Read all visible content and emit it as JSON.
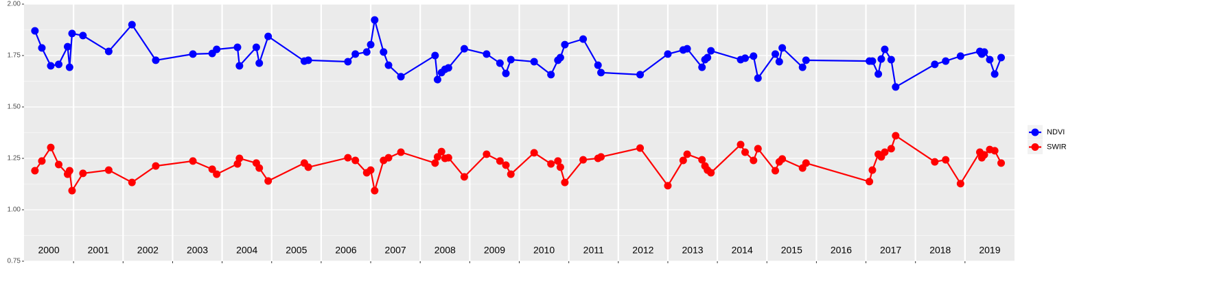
{
  "chart_data": {
    "type": "line",
    "x": [
      2000.22,
      2000.36,
      2000.54,
      2000.7,
      2000.88,
      2000.92,
      2000.97,
      2001.19,
      2001.71,
      2002.18,
      2002.66,
      2003.41,
      2003.8,
      2003.89,
      2004.31,
      2004.35,
      2004.69,
      2004.75,
      2004.93,
      2005.66,
      2005.74,
      2006.54,
      2006.69,
      2006.92,
      2007.0,
      2007.08,
      2007.26,
      2007.36,
      2007.61,
      2008.3,
      2008.35,
      2008.43,
      2008.5,
      2008.57,
      2008.89,
      2009.34,
      2009.61,
      2009.73,
      2009.83,
      2010.3,
      2010.64,
      2010.78,
      2010.83,
      2010.92,
      2011.29,
      2011.59,
      2011.65,
      2012.44,
      2013.0,
      2013.31,
      2013.39,
      2013.69,
      2013.75,
      2013.8,
      2013.87,
      2014.47,
      2014.56,
      2014.73,
      2014.82,
      2015.17,
      2015.25,
      2015.31,
      2015.72,
      2015.79,
      2017.07,
      2017.13,
      2017.25,
      2017.31,
      2017.38,
      2017.51,
      2017.6,
      2018.39,
      2018.61,
      2018.91,
      2019.3,
      2019.34,
      2019.39,
      2019.5,
      2019.6,
      2019.73
    ],
    "series": [
      {
        "name": "NDVI",
        "color": "#0000ff",
        "values": [
          1.87,
          1.787,
          1.7,
          1.707,
          1.793,
          1.693,
          1.857,
          1.847,
          1.77,
          1.9,
          1.727,
          1.757,
          1.76,
          1.78,
          1.79,
          1.7,
          1.79,
          1.713,
          1.843,
          1.723,
          1.727,
          1.72,
          1.757,
          1.767,
          1.803,
          1.923,
          1.767,
          1.703,
          1.647,
          1.75,
          1.633,
          1.667,
          1.683,
          1.69,
          1.783,
          1.757,
          1.713,
          1.663,
          1.73,
          1.72,
          1.657,
          1.727,
          1.74,
          1.803,
          1.83,
          1.703,
          1.667,
          1.657,
          1.757,
          1.777,
          1.783,
          1.693,
          1.73,
          1.74,
          1.773,
          1.73,
          1.737,
          1.747,
          1.64,
          1.757,
          1.72,
          1.787,
          1.693,
          1.727,
          1.723,
          1.723,
          1.66,
          1.733,
          1.78,
          1.73,
          1.597,
          1.707,
          1.723,
          1.747,
          1.77,
          1.757,
          1.767,
          1.73,
          1.66,
          1.74
        ]
      },
      {
        "name": "SWIR",
        "color": "#ff0000",
        "values": [
          1.19,
          1.237,
          1.303,
          1.22,
          1.173,
          1.19,
          1.093,
          1.177,
          1.193,
          1.133,
          1.213,
          1.237,
          1.197,
          1.173,
          1.223,
          1.25,
          1.227,
          1.203,
          1.14,
          1.227,
          1.207,
          1.253,
          1.24,
          1.18,
          1.193,
          1.093,
          1.24,
          1.253,
          1.28,
          1.227,
          1.257,
          1.283,
          1.25,
          1.253,
          1.16,
          1.27,
          1.237,
          1.217,
          1.173,
          1.277,
          1.223,
          1.237,
          1.207,
          1.133,
          1.243,
          1.25,
          1.257,
          1.3,
          1.117,
          1.24,
          1.27,
          1.243,
          1.213,
          1.193,
          1.18,
          1.317,
          1.28,
          1.24,
          1.297,
          1.19,
          1.233,
          1.247,
          1.203,
          1.227,
          1.137,
          1.193,
          1.27,
          1.257,
          1.28,
          1.297,
          1.36,
          1.233,
          1.243,
          1.127,
          1.28,
          1.253,
          1.267,
          1.293,
          1.287,
          1.227
        ]
      }
    ],
    "xlim": [
      2000,
      2020
    ],
    "xticks": [
      2001,
      2002,
      2003,
      2004,
      2005,
      2006,
      2007,
      2008,
      2009,
      2010,
      2011,
      2012,
      2013,
      2014,
      2015,
      2016,
      2017,
      2018,
      2019
    ],
    "year_labels": [
      "2000",
      "2001",
      "2002",
      "2003",
      "2004",
      "2005",
      "2006",
      "2007",
      "2008",
      "2009",
      "2010",
      "2011",
      "2012",
      "2013",
      "2014",
      "2015",
      "2016",
      "2017",
      "2018",
      "2019"
    ],
    "ylim": [
      0.75,
      2.0
    ],
    "yticks": [
      {
        "value": 0.75,
        "label": "0.75"
      },
      {
        "value": 1.0,
        "label": "1.00"
      },
      {
        "value": 1.25,
        "label": "1.25"
      },
      {
        "value": 1.5,
        "label": "1.50"
      },
      {
        "value": 1.75,
        "label": "1.75"
      },
      {
        "value": 2.0,
        "label": "2.00"
      }
    ],
    "grid": true,
    "legend": "right"
  }
}
